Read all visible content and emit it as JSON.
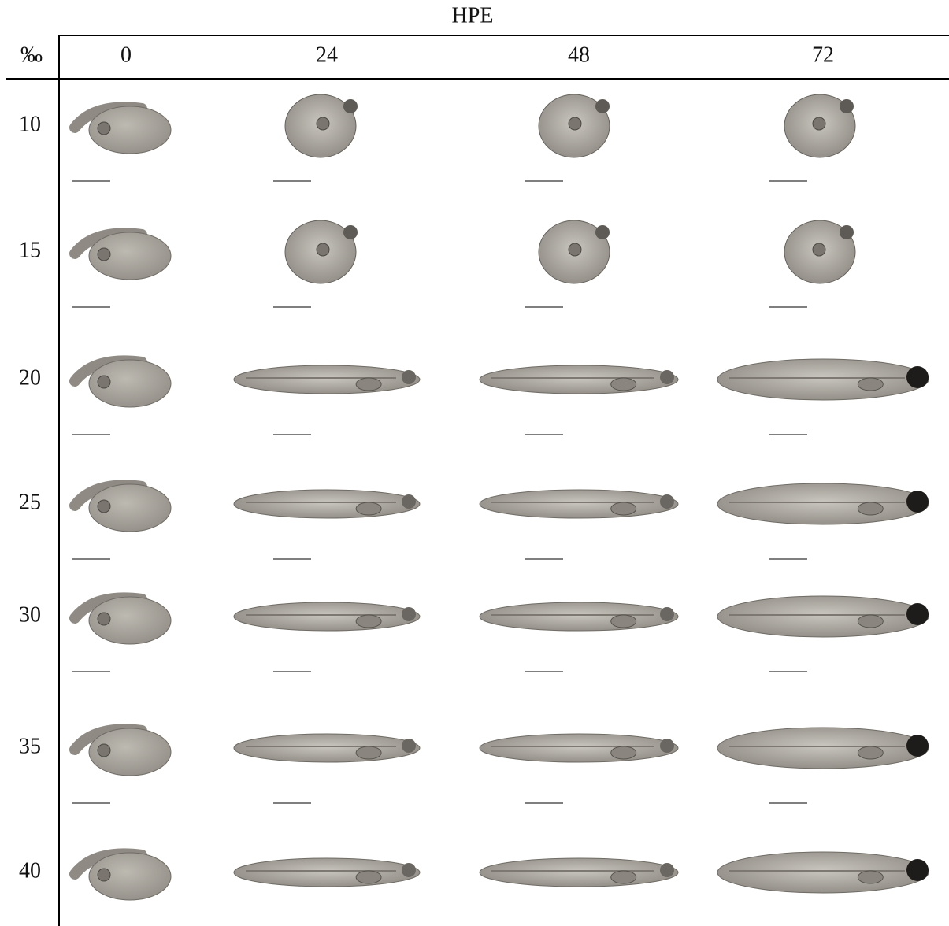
{
  "header": {
    "title": "HPE",
    "unit": "‰",
    "columns": [
      "0",
      "24",
      "48",
      "72"
    ]
  },
  "rows": [
    "10",
    "15",
    "20",
    "25",
    "30",
    "35",
    "40"
  ]
}
